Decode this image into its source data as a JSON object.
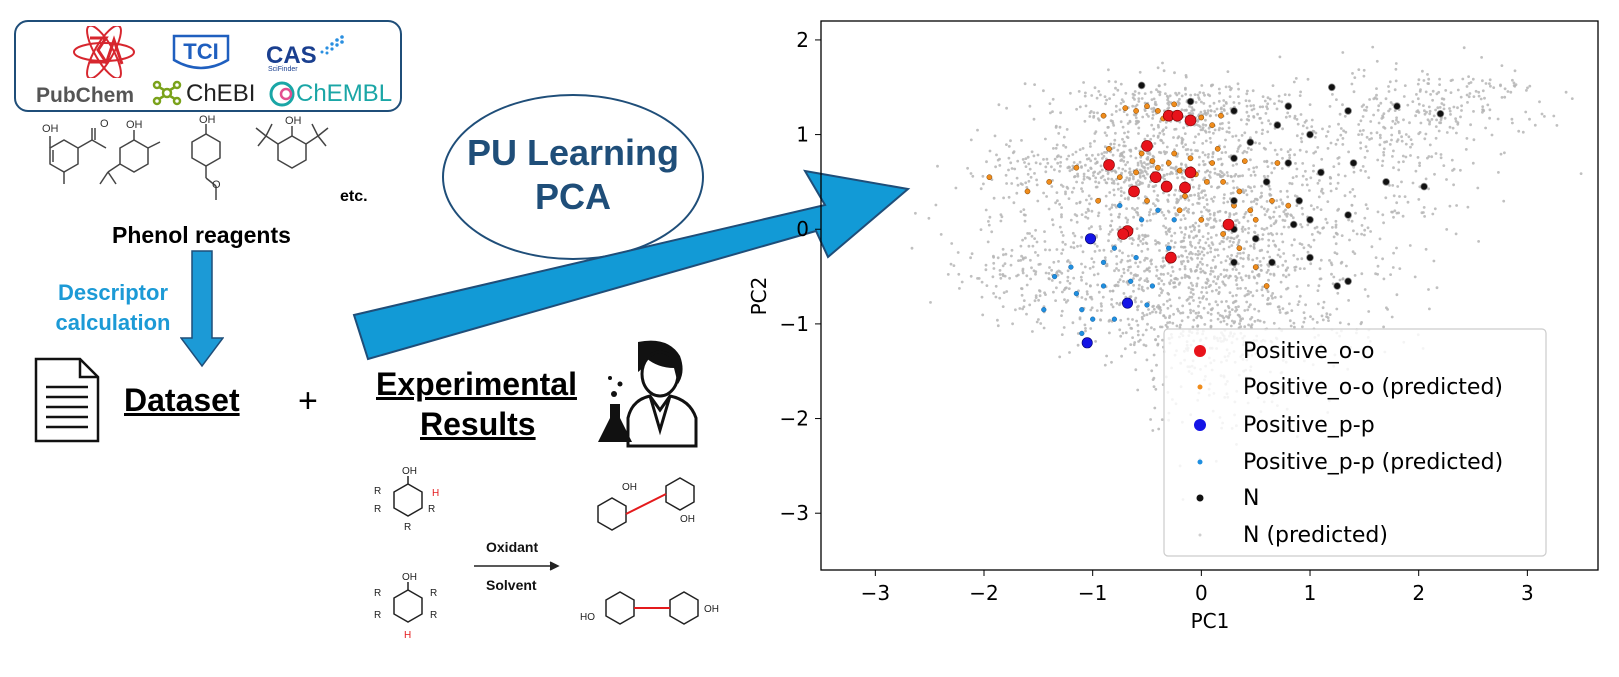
{
  "databases": {
    "logos": [
      "PubChem",
      "ChEBI",
      "ChEMBL",
      "CAS",
      "SciFinder",
      "TCI"
    ]
  },
  "phenols": {
    "label": "Phenol reagents",
    "etc": "etc.",
    "oh": "OH"
  },
  "descriptor": {
    "line1": "Descriptor",
    "line2": "calculation"
  },
  "dataset_label": "Dataset",
  "plus": "+",
  "experimental": {
    "line1": "Experimental",
    "line2": "Results"
  },
  "reaction": {
    "oxidant": "Oxidant",
    "solvent": "Solvent",
    "atoms": {
      "oh": "OH",
      "ho": "HO",
      "h": "H",
      "r1": "R",
      "r2": "R",
      "r3": "R",
      "r4": "R"
    }
  },
  "method": {
    "line1": "PU Learning",
    "line2": "PCA"
  },
  "colors": {
    "accent_blue": "#1c9ad6",
    "dark_navy": "#1f4e79",
    "positive_oo": "#e8131b",
    "positive_oo_pred": "#f08c1b",
    "positive_pp": "#1414e6",
    "positive_pp_pred": "#1f8fe0",
    "negative": "#111111",
    "negative_pred": "#b5b5b5"
  },
  "chart_data": {
    "type": "scatter",
    "xlabel": "PC1",
    "ylabel": "PC2",
    "xlim": [
      -3.5,
      3.65
    ],
    "ylim": [
      -3.6,
      2.2
    ],
    "xticks": [
      -3,
      -2,
      -1,
      0,
      1,
      2,
      3
    ],
    "yticks": [
      2,
      1,
      0,
      -1,
      -2,
      -3
    ],
    "xtick_labels": [
      "−3",
      "−2",
      "−1",
      "0",
      "1",
      "2",
      "3"
    ],
    "ytick_labels": [
      "2",
      "1",
      "0",
      "−1",
      "−2",
      "−3"
    ],
    "legend_position": "lower-right",
    "series": [
      {
        "name": "Positive_o-o",
        "points": [
          [
            -0.85,
            0.68
          ],
          [
            -0.5,
            0.88
          ],
          [
            -0.42,
            0.55
          ],
          [
            -0.62,
            0.4
          ],
          [
            -0.1,
            0.6
          ],
          [
            -0.15,
            0.44
          ],
          [
            -0.32,
            0.45
          ],
          [
            -0.68,
            -0.02
          ],
          [
            -0.72,
            -0.05
          ],
          [
            0.25,
            0.05
          ],
          [
            -0.28,
            -0.3
          ],
          [
            -0.3,
            1.2
          ],
          [
            -0.1,
            1.15
          ],
          [
            -0.22,
            1.2
          ]
        ]
      },
      {
        "name": "Positive_o-o (predicted)",
        "points": [
          [
            -0.9,
            1.2
          ],
          [
            -0.7,
            1.28
          ],
          [
            -0.5,
            1.3
          ],
          [
            -0.4,
            1.25
          ],
          [
            -0.25,
            1.32
          ],
          [
            0.0,
            1.18
          ],
          [
            0.1,
            1.1
          ],
          [
            0.18,
            1.2
          ],
          [
            -0.6,
            1.25
          ],
          [
            -0.35,
            1.17
          ],
          [
            -0.55,
            0.8
          ],
          [
            -0.45,
            0.72
          ],
          [
            -0.3,
            0.7
          ],
          [
            -0.2,
            0.62
          ],
          [
            -0.05,
            0.58
          ],
          [
            0.05,
            0.5
          ],
          [
            -0.75,
            0.55
          ],
          [
            -0.6,
            0.6
          ],
          [
            -0.4,
            0.65
          ],
          [
            -0.25,
            0.8
          ],
          [
            -0.1,
            0.75
          ],
          [
            0.1,
            0.7
          ],
          [
            0.2,
            0.5
          ],
          [
            0.35,
            0.4
          ],
          [
            -1.95,
            0.55
          ],
          [
            -1.6,
            0.4
          ],
          [
            -1.4,
            0.5
          ],
          [
            -0.95,
            0.3
          ],
          [
            -0.5,
            0.3
          ],
          [
            -0.2,
            0.2
          ],
          [
            0.3,
            0.25
          ],
          [
            0.5,
            0.1
          ],
          [
            0.35,
            -0.2
          ],
          [
            0.5,
            -0.4
          ],
          [
            0.6,
            -0.6
          ],
          [
            0.45,
            0.2
          ],
          [
            0.2,
            -0.05
          ],
          [
            0.0,
            0.1
          ],
          [
            -0.15,
            0.35
          ],
          [
            0.65,
            0.3
          ],
          [
            0.7,
            0.7
          ],
          [
            0.8,
            0.25
          ],
          [
            -1.15,
            0.65
          ],
          [
            -0.85,
            0.85
          ],
          [
            0.15,
            0.85
          ],
          [
            0.4,
            0.72
          ]
        ]
      },
      {
        "name": "Positive_p-p",
        "points": [
          [
            -1.02,
            -0.1
          ],
          [
            -0.68,
            -0.78
          ],
          [
            -1.05,
            -1.2
          ]
        ]
      },
      {
        "name": "Positive_p-p (predicted)",
        "points": [
          [
            -1.35,
            -0.5
          ],
          [
            -1.2,
            -0.4
          ],
          [
            -1.15,
            -0.68
          ],
          [
            -1.1,
            -0.85
          ],
          [
            -1.0,
            -0.95
          ],
          [
            -1.1,
            -1.1
          ],
          [
            -0.8,
            -0.95
          ],
          [
            -0.65,
            -0.55
          ],
          [
            -0.45,
            -0.6
          ],
          [
            -0.6,
            -0.3
          ],
          [
            -0.8,
            -0.2
          ],
          [
            -0.9,
            -0.35
          ],
          [
            -0.55,
            0.1
          ],
          [
            -0.4,
            0.2
          ],
          [
            -0.3,
            -0.2
          ],
          [
            -0.5,
            -0.8
          ],
          [
            -0.9,
            -0.6
          ],
          [
            -0.75,
            0.25
          ],
          [
            -0.25,
            0.1
          ],
          [
            -1.45,
            -0.85
          ]
        ]
      },
      {
        "name": "N",
        "points": [
          [
            -0.55,
            1.52
          ],
          [
            -0.1,
            1.35
          ],
          [
            0.3,
            1.25
          ],
          [
            0.45,
            0.92
          ],
          [
            0.7,
            1.1
          ],
          [
            0.8,
            1.3
          ],
          [
            1.0,
            1.0
          ],
          [
            1.2,
            1.5
          ],
          [
            1.35,
            1.25
          ],
          [
            1.8,
            1.3
          ],
          [
            2.2,
            1.22
          ],
          [
            0.3,
            0.75
          ],
          [
            0.8,
            0.7
          ],
          [
            1.4,
            0.7
          ],
          [
            1.7,
            0.5
          ],
          [
            2.05,
            0.45
          ],
          [
            0.6,
            0.5
          ],
          [
            0.9,
            0.3
          ],
          [
            1.1,
            0.6
          ],
          [
            0.3,
            0.0
          ],
          [
            0.5,
            -0.1
          ],
          [
            0.85,
            0.05
          ],
          [
            1.0,
            0.1
          ],
          [
            1.35,
            0.15
          ],
          [
            0.3,
            -0.35
          ],
          [
            0.65,
            -0.35
          ],
          [
            1.0,
            -0.3
          ],
          [
            1.25,
            -0.6
          ],
          [
            1.35,
            -0.55
          ],
          [
            0.3,
            0.3
          ]
        ]
      },
      {
        "name": "N (predicted)",
        "generated": true,
        "count": 3000
      }
    ]
  }
}
